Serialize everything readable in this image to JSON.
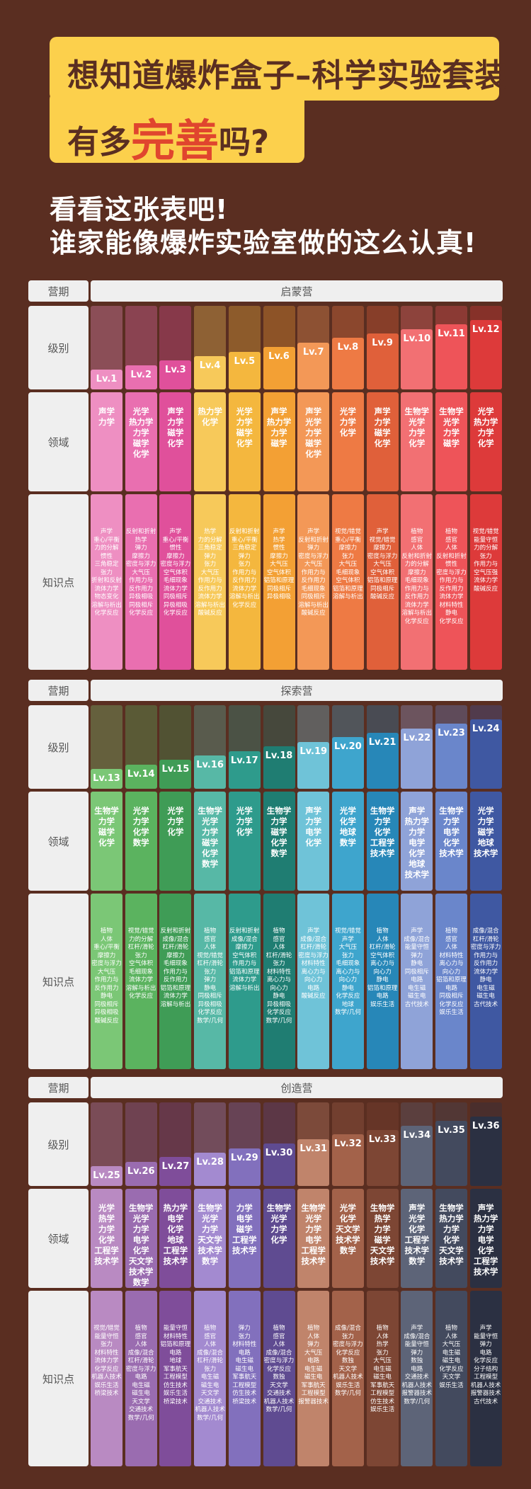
{
  "headline": {
    "line1": "想知道爆炸盒子–科学实验套装",
    "line2_pre": "有多",
    "line2_big": "完善",
    "line2_post": "吗?"
  },
  "subtitle": {
    "line1": "看看这张表吧!",
    "line2": "谁家能像爆炸实验室做的这么认真!"
  },
  "row_labels": {
    "camp": "营期",
    "level": "级别",
    "domain": "领域",
    "knowledge": "知识点"
  },
  "camps": [
    {
      "name": "启蒙营",
      "columns": [
        {
          "lv": "Lv.1",
          "color": "#ee8fc2",
          "domains": [
            "声学",
            "力学"
          ],
          "knowledge": [
            "声学",
            "重心/平衡",
            "力的分解",
            "惯性",
            "三角稳定",
            "张力",
            "折射和反射",
            "流体力学",
            "物态变化",
            "溶解与析出",
            "化学反应"
          ]
        },
        {
          "lv": "Lv.2",
          "color": "#e96fb0",
          "domains": [
            "光学",
            "热力学",
            "力学",
            "磁学",
            "化学"
          ],
          "knowledge": [
            "反射和折射",
            "热学",
            "弹力",
            "摩擦力",
            "密度与浮力",
            "大气压",
            "作用力与",
            "反作用力",
            "异极相吸",
            "同极相斥",
            "化学反应"
          ]
        },
        {
          "lv": "Lv.3",
          "color": "#e0509b",
          "domains": [
            "声学",
            "力学",
            "磁学",
            "化学"
          ],
          "knowledge": [
            "声学",
            "重心/平衡",
            "惯性",
            "摩擦力",
            "密度与浮力",
            "空气体积",
            "毛细现象",
            "流体力学",
            "同极相斥",
            "异极相吸",
            "化学反应"
          ]
        },
        {
          "lv": "Lv.4",
          "color": "#f7c95a",
          "domains": [
            "热力学",
            "化学"
          ],
          "knowledge": [
            "热学",
            "力的分解",
            "三角稳定",
            "弹力",
            "张力",
            "大气压",
            "作用力与",
            "反作用力",
            "流体力学",
            "溶解与析出",
            "酸碱反应"
          ]
        },
        {
          "lv": "Lv.5",
          "color": "#f4b73e",
          "domains": [
            "光学",
            "力学",
            "磁学",
            "化学"
          ],
          "knowledge": [
            "反射和折射",
            "重心/平衡",
            "三角稳定",
            "弹力",
            "张力",
            "作用力与",
            "反作用力",
            "流体力学",
            "溶解与析出",
            "化学反应"
          ]
        },
        {
          "lv": "Lv.6",
          "color": "#f3a034",
          "domains": [
            "声学",
            "热力学",
            "力学",
            "磁学"
          ],
          "knowledge": [
            "声学",
            "热学",
            "惯性",
            "摩擦力",
            "大气压",
            "空气体积",
            "铝箔和原理",
            "同极相斥",
            "异极相吸"
          ]
        },
        {
          "lv": "Lv.7",
          "color": "#f39857",
          "domains": [
            "声学",
            "光学",
            "力学",
            "磁学",
            "化学"
          ],
          "knowledge": [
            "声学",
            "反射和折射",
            "弹力",
            "密度与浮力",
            "大气压",
            "作用力与",
            "反作用力",
            "毛细现象",
            "同极相斥",
            "溶解与析出",
            "酸碱反应"
          ]
        },
        {
          "lv": "Lv.8",
          "color": "#ee7a44",
          "domains": [
            "光学",
            "力学",
            "化学"
          ],
          "knowledge": [
            "视觉/错觉",
            "重心/平衡",
            "摩擦力",
            "张力",
            "大气压",
            "毛细现象",
            "空气体积",
            "铝箔和原理",
            "溶解与析出"
          ]
        },
        {
          "lv": "Lv.9",
          "color": "#e0603a",
          "domains": [
            "声学",
            "力学",
            "磁学",
            "化学"
          ],
          "knowledge": [
            "声学",
            "视觉/错觉",
            "摩擦力",
            "密度与浮力",
            "大气压",
            "空气体积",
            "铝箔和原理",
            "同极相斥",
            "酸碱反应"
          ]
        },
        {
          "lv": "Lv.10",
          "color": "#f27073",
          "domains": [
            "生物学",
            "光学",
            "力学",
            "化学"
          ],
          "knowledge": [
            "植物",
            "感官",
            "人体",
            "反射和折射",
            "力的分解",
            "摩擦力",
            "毛细现象",
            "作用力与",
            "反作用力",
            "流体力学",
            "溶解与析出",
            "化学反应"
          ]
        },
        {
          "lv": "Lv.11",
          "color": "#ee5459",
          "domains": [
            "生物学",
            "光学",
            "力学",
            "磁学"
          ],
          "knowledge": [
            "植物",
            "感官",
            "人体",
            "反射和折射",
            "惯性",
            "密度与浮力",
            "作用力与",
            "反作用力",
            "流体力学",
            "材料特性",
            "静电",
            "化学反应"
          ]
        },
        {
          "lv": "Lv.12",
          "color": "#dd3a3a",
          "domains": [
            "光学",
            "热力学",
            "力学",
            "化学"
          ],
          "knowledge": [
            "视觉/错觉",
            "能量守恒",
            "力的分解",
            "张力",
            "作用力与",
            "空气压强",
            "流体力学",
            "酸碱反应"
          ]
        }
      ]
    },
    {
      "name": "探索营",
      "columns": [
        {
          "lv": "Lv.13",
          "color": "#7bc776",
          "domains": [
            "生物学",
            "力学",
            "磁学",
            "化学"
          ],
          "knowledge": [
            "植物",
            "人体",
            "重心/平衡",
            "摩擦力",
            "密度与浮力",
            "大气压",
            "作用力与",
            "反作用力",
            "静电",
            "同极相斥",
            "异极相吸",
            "酸碱反应"
          ]
        },
        {
          "lv": "Lv.14",
          "color": "#5bb35f",
          "domains": [
            "光学",
            "力学",
            "化学",
            "数学"
          ],
          "knowledge": [
            "视觉/错觉",
            "力的分解",
            "杠杆/滑轮",
            "张力",
            "空气体积",
            "毛细现象",
            "流体力学",
            "溶解与析出",
            "化学反应"
          ]
        },
        {
          "lv": "Lv.15",
          "color": "#3f9c56",
          "domains": [
            "光学",
            "力学",
            "化学"
          ],
          "knowledge": [
            "反射和折射",
            "成像/混合",
            "杠杆/滑轮",
            "摩擦力",
            "毛细现象",
            "作用力与",
            "反作用力",
            "铝箔和原理",
            "流体力学",
            "溶解与析出"
          ]
        },
        {
          "lv": "Lv.16",
          "color": "#57b8a6",
          "domains": [
            "生物学",
            "光学",
            "力学",
            "磁学",
            "化学",
            "数学"
          ],
          "knowledge": [
            "植物",
            "感官",
            "人体",
            "视觉/错觉",
            "杠杆/滑轮",
            "张力",
            "弹力",
            "静电",
            "同极相斥",
            "异极相吸",
            "化学反应",
            "数学/几何"
          ]
        },
        {
          "lv": "Lv.17",
          "color": "#2e9b8c",
          "domains": [
            "光学",
            "力学",
            "化学"
          ],
          "knowledge": [
            "反射和折射",
            "成像/混合",
            "摩擦力",
            "空气体积",
            "作用力与",
            "铝箔和原理",
            "流体力学",
            "溶解与析出"
          ]
        },
        {
          "lv": "Lv.18",
          "color": "#1f7d72",
          "domains": [
            "生物学",
            "力学",
            "磁学",
            "化学",
            "数学"
          ],
          "knowledge": [
            "植物",
            "感官",
            "人体",
            "杠杆/滑轮",
            "张力",
            "材料特性",
            "离心力与",
            "向心力",
            "静电",
            "异极相吸",
            "化学反应",
            "数学/几何"
          ]
        },
        {
          "lv": "Lv.19",
          "color": "#6fc3d8",
          "domains": [
            "声学",
            "力学",
            "电学",
            "化学"
          ],
          "knowledge": [
            "声学",
            "成像/混合",
            "杠杆/滑轮",
            "密度与浮力",
            "材料特性",
            "离心力与",
            "向心力",
            "电路",
            "酸碱反应"
          ]
        },
        {
          "lv": "Lv.20",
          "color": "#3ea5cd",
          "domains": [
            "光学",
            "化学",
            "地球",
            "数学"
          ],
          "knowledge": [
            "视觉/错觉",
            "声学",
            "大气压",
            "张力",
            "毛细现象",
            "离心力与",
            "向心力",
            "静电",
            "化学反应",
            "地球",
            "数学/几何"
          ]
        },
        {
          "lv": "Lv.21",
          "color": "#2787b8",
          "domains": [
            "生物学",
            "力学",
            "化学",
            "工程学",
            "技术学"
          ],
          "knowledge": [
            "植物",
            "人体",
            "杠杆/滑轮",
            "空气体积",
            "离心力与",
            "向心力",
            "静电",
            "铝箔和原理",
            "电路",
            "娱乐生活"
          ]
        },
        {
          "lv": "Lv.22",
          "color": "#8fa3d8",
          "domains": [
            "声学",
            "热力学",
            "力学",
            "电学",
            "化学",
            "地球",
            "技术学"
          ],
          "knowledge": [
            "声学",
            "成像/混合",
            "能量守恒",
            "弹力",
            "静电",
            "同极相斥",
            "电路",
            "电生磁",
            "磁生电",
            "古代技术"
          ]
        },
        {
          "lv": "Lv.23",
          "color": "#6a86cb",
          "domains": [
            "生物学",
            "力学",
            "电学",
            "化学",
            "技术学"
          ],
          "knowledge": [
            "植物",
            "感官",
            "人体",
            "材料特性",
            "离心力与",
            "向心力",
            "铝箔和原理",
            "电路",
            "同极相斥",
            "化学反应",
            "娱乐生活"
          ]
        },
        {
          "lv": "Lv.24",
          "color": "#3f58a2",
          "domains": [
            "光学",
            "力学",
            "磁学",
            "地球",
            "技术学"
          ],
          "knowledge": [
            "成像/混合",
            "杠杆/滑轮",
            "密度与浮力",
            "作用力与",
            "反作用力",
            "流体力学",
            "静电",
            "电生磁",
            "磁生电",
            "古代技术"
          ]
        }
      ]
    },
    {
      "name": "创造营",
      "columns": [
        {
          "lv": "Lv.25",
          "color": "#b98ac2",
          "domains": [
            "光学",
            "热学",
            "力学",
            "化学",
            "工程学",
            "技术学"
          ],
          "knowledge": [
            "视觉/错觉",
            "能量守恒",
            "张力",
            "材料特性",
            "流体力学",
            "化学反应",
            "机器人技术",
            "娱乐生活",
            "桥梁技术"
          ]
        },
        {
          "lv": "Lv.26",
          "color": "#9a6cb0",
          "domains": [
            "生物学",
            "光学",
            "力学",
            "电学",
            "化学",
            "天文学",
            "技术学",
            "数学"
          ],
          "knowledge": [
            "植物",
            "感官",
            "人体",
            "成像/混合",
            "杠杆/滑轮",
            "密度与浮力",
            "电路",
            "电生磁",
            "磁生电",
            "天文学",
            "交通技术",
            "数学/几何"
          ]
        },
        {
          "lv": "Lv.27",
          "color": "#7f4d9a",
          "domains": [
            "热力学",
            "电学",
            "化学",
            "地球",
            "工程学",
            "技术学"
          ],
          "knowledge": [
            "能量守恒",
            "材料特性",
            "铝箔和原理",
            "电路",
            "地球",
            "军事航天",
            "工程模型",
            "仿生技术",
            "娱乐生活",
            "桥梁技术"
          ]
        },
        {
          "lv": "Lv.28",
          "color": "#a38ad0",
          "domains": [
            "生物学",
            "光学",
            "力学",
            "天文学",
            "技术学",
            "数学"
          ],
          "knowledge": [
            "植物",
            "感官",
            "人体",
            "成像/混合",
            "杠杆/滑轮",
            "张力",
            "电生磁",
            "磁生电",
            "天文学",
            "交通技术",
            "机器人技术",
            "数学/几何"
          ]
        },
        {
          "lv": "Lv.29",
          "color": "#8270bd",
          "domains": [
            "力学",
            "电学",
            "磁学",
            "工程学",
            "技术学"
          ],
          "knowledge": [
            "弹力",
            "张力",
            "材料特性",
            "电路",
            "电生磁",
            "磁生电",
            "军事航天",
            "工程模型",
            "仿生技术",
            "桥梁技术"
          ]
        },
        {
          "lv": "Lv.30",
          "color": "#5f4b91",
          "domains": [
            "生物学",
            "光学",
            "力学",
            "化学"
          ],
          "knowledge": [
            "植物",
            "感官",
            "人体",
            "成像/混合",
            "密度与浮力",
            "化学反应",
            "数独",
            "天文学",
            "交通技术",
            "机器人技术",
            "数学/几何"
          ]
        },
        {
          "lv": "Lv.31",
          "color": "#c0846b",
          "domains": [
            "生物学",
            "光学",
            "力学",
            "电学",
            "工程学",
            "技术学"
          ],
          "knowledge": [
            "植物",
            "人体",
            "弹力",
            "大气压",
            "电路",
            "电生磁",
            "磁生电",
            "军事航天",
            "工程模型",
            "报警器技术"
          ]
        },
        {
          "lv": "Lv.32",
          "color": "#a3624a",
          "domains": [
            "光学",
            "化学",
            "天文学",
            "技术学",
            "数学"
          ],
          "knowledge": [
            "成像/混合",
            "张力",
            "密度与浮力",
            "化学反应",
            "数独",
            "天文学",
            "机器人技术",
            "娱乐生活",
            "数学/几何"
          ]
        },
        {
          "lv": "Lv.33",
          "color": "#7d4634",
          "domains": [
            "生物学",
            "热学",
            "力学",
            "磁学",
            "天文学",
            "技术学"
          ],
          "knowledge": [
            "植物",
            "人体",
            "热学",
            "张力",
            "大气压",
            "电生磁",
            "磁生电",
            "军事航天",
            "工程模型",
            "仿生技术",
            "娱乐生活"
          ]
        },
        {
          "lv": "Lv.34",
          "color": "#5d6478",
          "domains": [
            "声学",
            "光学",
            "化学",
            "工程学",
            "技术学",
            "数学"
          ],
          "knowledge": [
            "声学",
            "成像/混合",
            "能量守恒",
            "弹力",
            "数独",
            "电路",
            "交通技术",
            "机器人技术",
            "报警器技术",
            "数学/几何"
          ]
        },
        {
          "lv": "Lv.35",
          "color": "#434a5e",
          "domains": [
            "生物学",
            "热力学",
            "力学",
            "化学",
            "天文学",
            "技术学"
          ],
          "knowledge": [
            "植物",
            "人体",
            "大气压",
            "电生磁",
            "磁生电",
            "化学反应",
            "天文学",
            "娱乐生活"
          ]
        },
        {
          "lv": "Lv.36",
          "color": "#2b3042",
          "domains": [
            "声学",
            "热力学",
            "力学",
            "电学",
            "化学",
            "工程学",
            "技术学"
          ],
          "knowledge": [
            "声学",
            "能量守恒",
            "弹力",
            "电路",
            "化学反应",
            "分子结构",
            "工程模型",
            "机器人技术",
            "报警器技术",
            "古代技术"
          ]
        }
      ]
    }
  ]
}
